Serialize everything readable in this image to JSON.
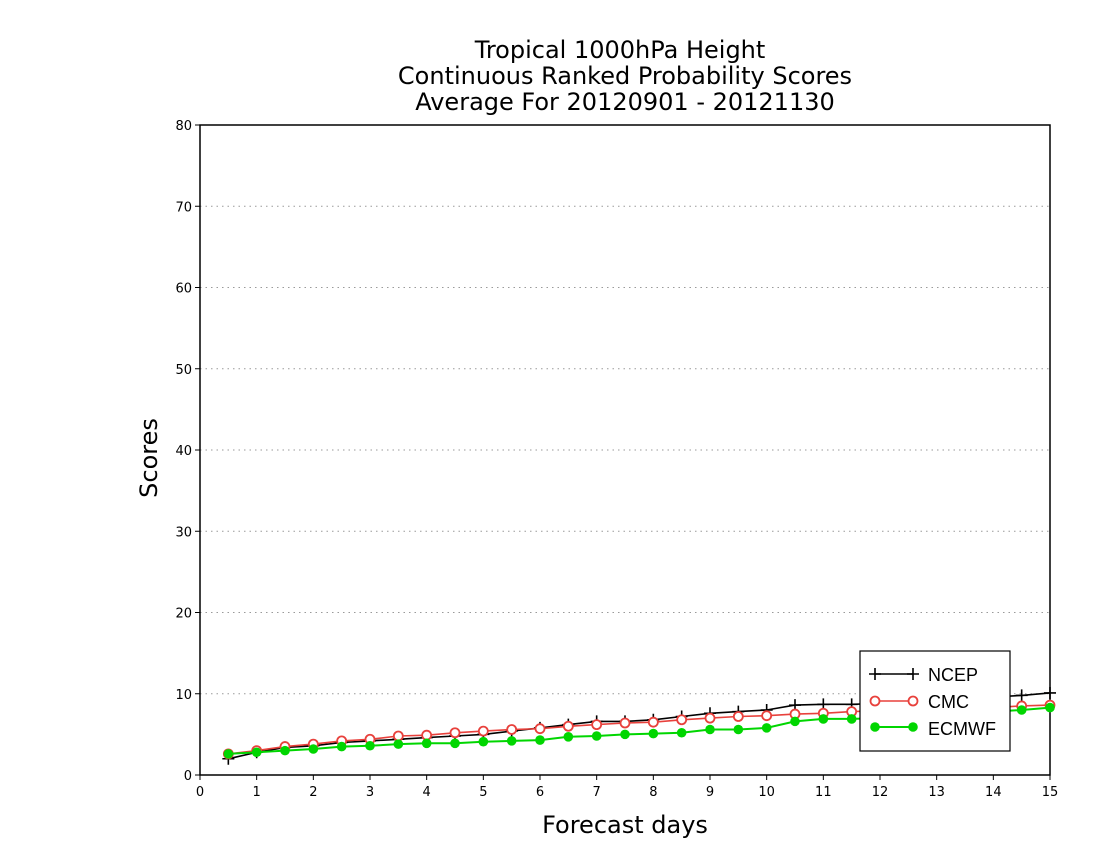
{
  "chart_data": {
    "type": "line",
    "title_lines": [
      "Tropical 1000hPa Height",
      "Continuous Ranked Probability Scores",
      "Average For 20120901 - 20121130"
    ],
    "xlabel": "Forecast days",
    "ylabel": "Scores",
    "xlim": [
      0,
      15
    ],
    "ylim": [
      0,
      80
    ],
    "xticks": [
      "0",
      "1",
      "2",
      "3",
      "4",
      "5",
      "6",
      "7",
      "8",
      "9",
      "10",
      "11",
      "12",
      "13",
      "14",
      "15"
    ],
    "yticks": [
      "0",
      "10",
      "20",
      "30",
      "40",
      "50",
      "60",
      "70",
      "80"
    ],
    "grid": "horizontal dotted",
    "legend_position": "bottom-right",
    "x": [
      0.5,
      1,
      1.5,
      2,
      2.5,
      3,
      3.5,
      4,
      4.5,
      5,
      5.5,
      6,
      6.5,
      7,
      7.5,
      8,
      8.5,
      9,
      9.5,
      10,
      10.5,
      11,
      11.5,
      12,
      12.5,
      13,
      13.5,
      14,
      14.5,
      15
    ],
    "series": [
      {
        "name": "NCEP",
        "color": "#000000",
        "marker": "plus",
        "values": [
          2.0,
          2.8,
          3.4,
          3.6,
          4.0,
          4.2,
          4.4,
          4.6,
          4.8,
          5.0,
          5.4,
          5.8,
          6.2,
          6.6,
          6.6,
          6.8,
          7.2,
          7.6,
          7.8,
          8.0,
          8.6,
          8.7,
          8.7,
          8.8,
          9.0,
          9.2,
          9.4,
          9.6,
          9.8,
          10.1
        ]
      },
      {
        "name": "CMC",
        "color": "#e8413c",
        "marker": "open-circle",
        "values": [
          2.6,
          3.0,
          3.5,
          3.8,
          4.2,
          4.4,
          4.8,
          4.9,
          5.2,
          5.4,
          5.6,
          5.7,
          6.0,
          6.2,
          6.4,
          6.5,
          6.8,
          7.0,
          7.2,
          7.3,
          7.5,
          7.6,
          7.8,
          7.9,
          8.0,
          8.1,
          8.2,
          8.3,
          8.5,
          8.6
        ]
      },
      {
        "name": "ECMWF",
        "color": "#00d600",
        "marker": "filled-circle",
        "values": [
          2.6,
          2.8,
          3.0,
          3.2,
          3.5,
          3.6,
          3.8,
          3.9,
          3.9,
          4.1,
          4.2,
          4.3,
          4.7,
          4.8,
          5.0,
          5.1,
          5.2,
          5.6,
          5.6,
          5.8,
          6.6,
          6.9,
          6.9,
          7.0,
          7.2,
          7.4,
          7.6,
          7.8,
          8.0,
          8.3
        ]
      }
    ]
  }
}
